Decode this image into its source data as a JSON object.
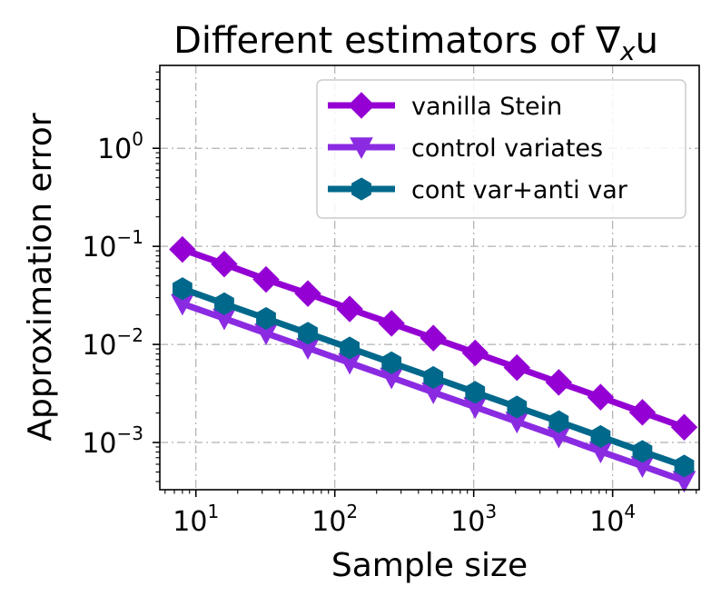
{
  "chart_data": {
    "type": "line",
    "title": "Different estimators of ∇",
    "title_sub": "x",
    "title_suffix": "u",
    "xlabel": "Sample size",
    "ylabel": "Approximation error",
    "xscale": "log",
    "yscale": "log",
    "xlim": [
      5.5,
      42000
    ],
    "ylim": [
      0.00033,
      7.0
    ],
    "grid": true,
    "legend_position": "top-right",
    "x_ticks": [
      {
        "base": "10",
        "exp": "1",
        "value": 10
      },
      {
        "base": "10",
        "exp": "2",
        "value": 100
      },
      {
        "base": "10",
        "exp": "3",
        "value": 1000
      },
      {
        "base": "10",
        "exp": "4",
        "value": 10000
      }
    ],
    "y_ticks": [
      {
        "base": "10",
        "exp": "−3",
        "value": 0.001
      },
      {
        "base": "10",
        "exp": "−2",
        "value": 0.01
      },
      {
        "base": "10",
        "exp": "−1",
        "value": 0.1
      },
      {
        "base": "10",
        "exp": "0",
        "value": 1
      }
    ],
    "x": [
      8,
      16,
      32,
      64,
      128,
      256,
      512,
      1024,
      2048,
      4096,
      8192,
      16384,
      32768
    ],
    "series": [
      {
        "name": "vanilla Stein",
        "color": "#9400d3",
        "marker": "diamond",
        "values": [
          0.093,
          0.066,
          0.046,
          0.033,
          0.023,
          0.0164,
          0.0116,
          0.0082,
          0.0058,
          0.0041,
          0.0029,
          0.00203,
          0.00143
        ]
      },
      {
        "name": "control variates",
        "color": "#8a2be2",
        "marker": "triangle-down",
        "values": [
          0.026,
          0.0184,
          0.013,
          0.0092,
          0.0065,
          0.0046,
          0.00325,
          0.0023,
          0.00163,
          0.00115,
          0.00081,
          0.000575,
          0.000407
        ]
      },
      {
        "name": "cont var+anti var",
        "color": "#00688b",
        "marker": "hexagon",
        "values": [
          0.037,
          0.026,
          0.0184,
          0.013,
          0.0092,
          0.0065,
          0.0046,
          0.00325,
          0.0023,
          0.00163,
          0.00115,
          0.00081,
          0.000575
        ]
      }
    ]
  }
}
